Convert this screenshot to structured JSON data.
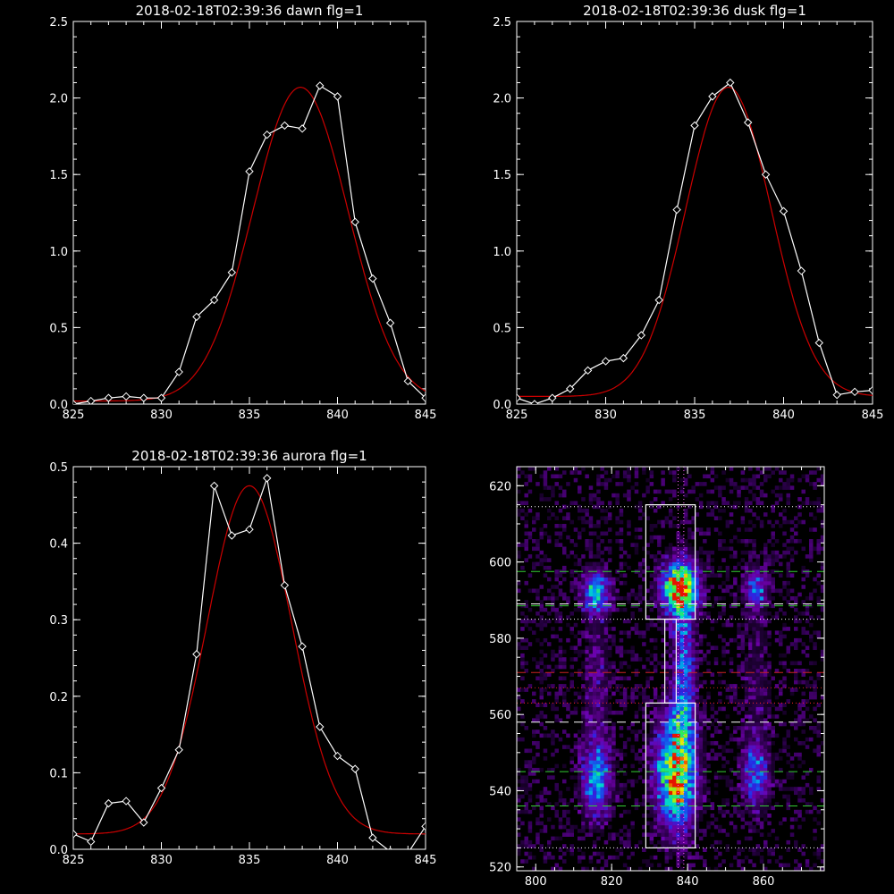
{
  "chart_data": [
    {
      "type": "line",
      "title": "2018-02-18T02:39:36 dawn flg=1",
      "xlim": [
        825,
        845
      ],
      "ylim": [
        0,
        2.5
      ],
      "xticks": [
        825,
        830,
        835,
        840,
        845
      ],
      "yticks": [
        0.0,
        0.5,
        1.0,
        1.5,
        2.0,
        2.5
      ],
      "ytick_labels": [
        "0.0",
        "0.5",
        "1.0",
        "1.5",
        "2.0",
        "2.5"
      ],
      "series": [
        {
          "kind": "data",
          "color": "#ffffff",
          "x": [
            825,
            826,
            827,
            828,
            829,
            830,
            831,
            832,
            833,
            834,
            835,
            836,
            837,
            838,
            839,
            840,
            841,
            842,
            843,
            844,
            845
          ],
          "y": [
            0.0,
            0.02,
            0.04,
            0.05,
            0.04,
            0.04,
            0.21,
            0.57,
            0.68,
            0.86,
            1.52,
            1.76,
            1.82,
            1.8,
            2.08,
            2.01,
            1.19,
            0.82,
            0.53,
            0.15,
            0.04
          ]
        },
        {
          "kind": "fit",
          "color": "#cc0000",
          "peak": 2.05,
          "center": 837.9,
          "sigma": 2.7,
          "offset": 0.02
        }
      ]
    },
    {
      "type": "line",
      "title": "2018-02-18T02:39:36 dusk flg=1",
      "xlim": [
        825,
        845
      ],
      "ylim": [
        0,
        2.5
      ],
      "xticks": [
        825,
        830,
        835,
        840,
        845
      ],
      "yticks": [
        0.0,
        0.5,
        1.0,
        1.5,
        2.0,
        2.5
      ],
      "ytick_labels": [
        "0.0",
        "0.5",
        "1.0",
        "1.5",
        "2.0",
        "2.5"
      ],
      "series": [
        {
          "kind": "data",
          "color": "#ffffff",
          "x": [
            825,
            826,
            827,
            828,
            829,
            830,
            831,
            832,
            833,
            834,
            835,
            836,
            837,
            838,
            839,
            840,
            841,
            842,
            843,
            844,
            845
          ],
          "y": [
            0.04,
            0.0,
            0.04,
            0.1,
            0.22,
            0.28,
            0.3,
            0.45,
            0.68,
            1.27,
            1.82,
            2.01,
            2.1,
            1.84,
            1.5,
            1.26,
            0.87,
            0.4,
            0.06,
            0.08,
            0.09
          ]
        },
        {
          "kind": "fit",
          "color": "#cc0000",
          "peak": 2.02,
          "center": 836.9,
          "sigma": 2.4,
          "offset": 0.05
        }
      ]
    },
    {
      "type": "line",
      "title": "2018-02-18T02:39:36 aurora flg=1",
      "xlim": [
        825,
        845
      ],
      "ylim": [
        0,
        0.5
      ],
      "xticks": [
        825,
        830,
        835,
        840,
        845
      ],
      "yticks": [
        0.0,
        0.1,
        0.2,
        0.3,
        0.4,
        0.5
      ],
      "ytick_labels": [
        "0.0",
        "0.1",
        "0.2",
        "0.3",
        "0.4",
        "0.5"
      ],
      "series": [
        {
          "kind": "data",
          "color": "#ffffff",
          "x": [
            825,
            826,
            827,
            828,
            829,
            830,
            831,
            832,
            833,
            834,
            835,
            836,
            837,
            838,
            839,
            840,
            841,
            842,
            843,
            844,
            845
          ],
          "y": [
            0.02,
            0.01,
            0.06,
            0.063,
            0.035,
            0.08,
            0.13,
            0.255,
            0.475,
            0.41,
            0.418,
            0.485,
            0.345,
            0.265,
            0.16,
            0.122,
            0.105,
            0.015,
            -0.003,
            -0.005,
            0.03
          ]
        },
        {
          "kind": "fit",
          "color": "#cc0000",
          "peak": 0.455,
          "center": 835.0,
          "sigma": 2.4,
          "offset": 0.02
        }
      ]
    },
    {
      "type": "heatmap",
      "title": "",
      "xlim": [
        795,
        876
      ],
      "ylim": [
        519,
        625
      ],
      "xticks": [
        800,
        820,
        840,
        860
      ],
      "yticks": [
        520,
        540,
        560,
        580,
        600,
        620
      ],
      "blobs": [
        {
          "x": 838,
          "y": 593,
          "sx": 3.2,
          "sy": 5,
          "amp": 1.0
        },
        {
          "x": 837,
          "y": 545,
          "sx": 3.5,
          "sy": 10,
          "amp": 0.9
        },
        {
          "x": 839,
          "y": 570,
          "sx": 2.0,
          "sy": 12,
          "amp": 0.45
        },
        {
          "x": 816,
          "y": 592,
          "sx": 2.5,
          "sy": 4,
          "amp": 0.55
        },
        {
          "x": 816,
          "y": 543,
          "sx": 2.7,
          "sy": 7,
          "amp": 0.5
        },
        {
          "x": 858,
          "y": 593,
          "sx": 2.2,
          "sy": 3.5,
          "amp": 0.4
        },
        {
          "x": 858,
          "y": 544,
          "sx": 2.5,
          "sy": 6,
          "amp": 0.38
        },
        {
          "x": 816,
          "y": 567,
          "sx": 2.5,
          "sy": 12,
          "amp": 0.18
        },
        {
          "x": 858,
          "y": 568,
          "sx": 3.0,
          "sy": 14,
          "amp": 0.12
        }
      ],
      "hlines": [
        {
          "y": 614.5,
          "color": "#ffffff",
          "style": "dotted"
        },
        {
          "y": 597.5,
          "color": "#33cc33",
          "style": "dashed"
        },
        {
          "y": 589,
          "color": "#ffffff",
          "style": "dashed"
        },
        {
          "y": 588.5,
          "color": "#33cc33",
          "style": "dashed"
        },
        {
          "y": 585,
          "color": "#ffffff",
          "style": "dotted"
        },
        {
          "y": 571,
          "color": "#cc2222",
          "style": "dashed"
        },
        {
          "y": 567,
          "color": "#cc2222",
          "style": "dotted"
        },
        {
          "y": 563,
          "color": "#ff2222",
          "style": "dotted"
        },
        {
          "y": 558,
          "color": "#ffffff",
          "style": "dashed"
        },
        {
          "y": 545,
          "color": "#33cc33",
          "style": "dashed"
        },
        {
          "y": 536,
          "color": "#33cc33",
          "style": "dashed"
        },
        {
          "y": 525,
          "color": "#ffffff",
          "style": "dotted"
        }
      ],
      "vlines": [
        {
          "x": 837.5,
          "color": "#ff66ff",
          "style": "dotted"
        },
        {
          "x": 839,
          "color": "#ff66ff",
          "style": "dotted"
        }
      ],
      "boxes": [
        {
          "x0": 829,
          "x1": 842,
          "y0": 585,
          "y1": 615
        },
        {
          "x0": 829,
          "x1": 842,
          "y0": 525,
          "y1": 563
        },
        {
          "x0": 834,
          "x1": 837,
          "y0": 563,
          "y1": 585
        }
      ]
    }
  ]
}
